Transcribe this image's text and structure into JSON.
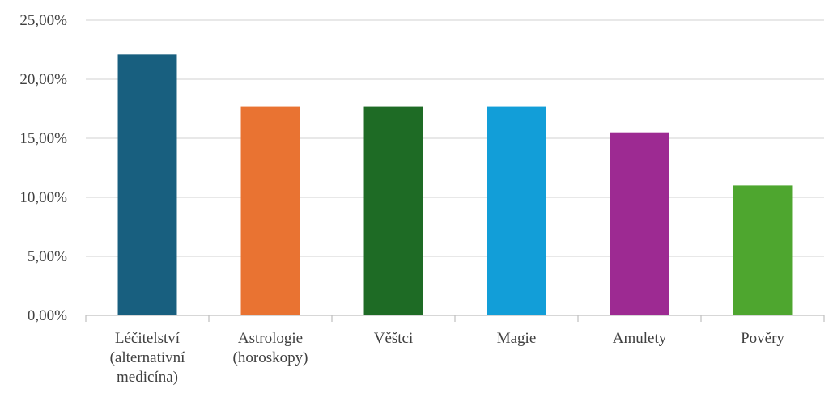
{
  "chart_data": {
    "type": "bar",
    "title": "",
    "xlabel": "",
    "ylabel": "",
    "categories": [
      [
        "Léčitelství",
        "(alternativní",
        "medicína)"
      ],
      [
        "Astrologie",
        "(horoskopy)"
      ],
      [
        "Věštci"
      ],
      [
        "Magie"
      ],
      [
        "Amulety"
      ],
      [
        "Pověry"
      ]
    ],
    "values": [
      22.1,
      17.7,
      17.7,
      17.7,
      15.5,
      11.0
    ],
    "colors": [
      "#185f7f",
      "#e97332",
      "#1e6b25",
      "#129ed8",
      "#9d2a92",
      "#4ea62f"
    ],
    "ylim": [
      0,
      25
    ],
    "y_ticks": [
      0,
      5,
      10,
      15,
      20,
      25
    ],
    "y_tick_labels": [
      "0,00%",
      "5,00%",
      "10,00%",
      "15,00%",
      "20,00%",
      "25,00%"
    ],
    "grid": true,
    "legend": "none"
  }
}
